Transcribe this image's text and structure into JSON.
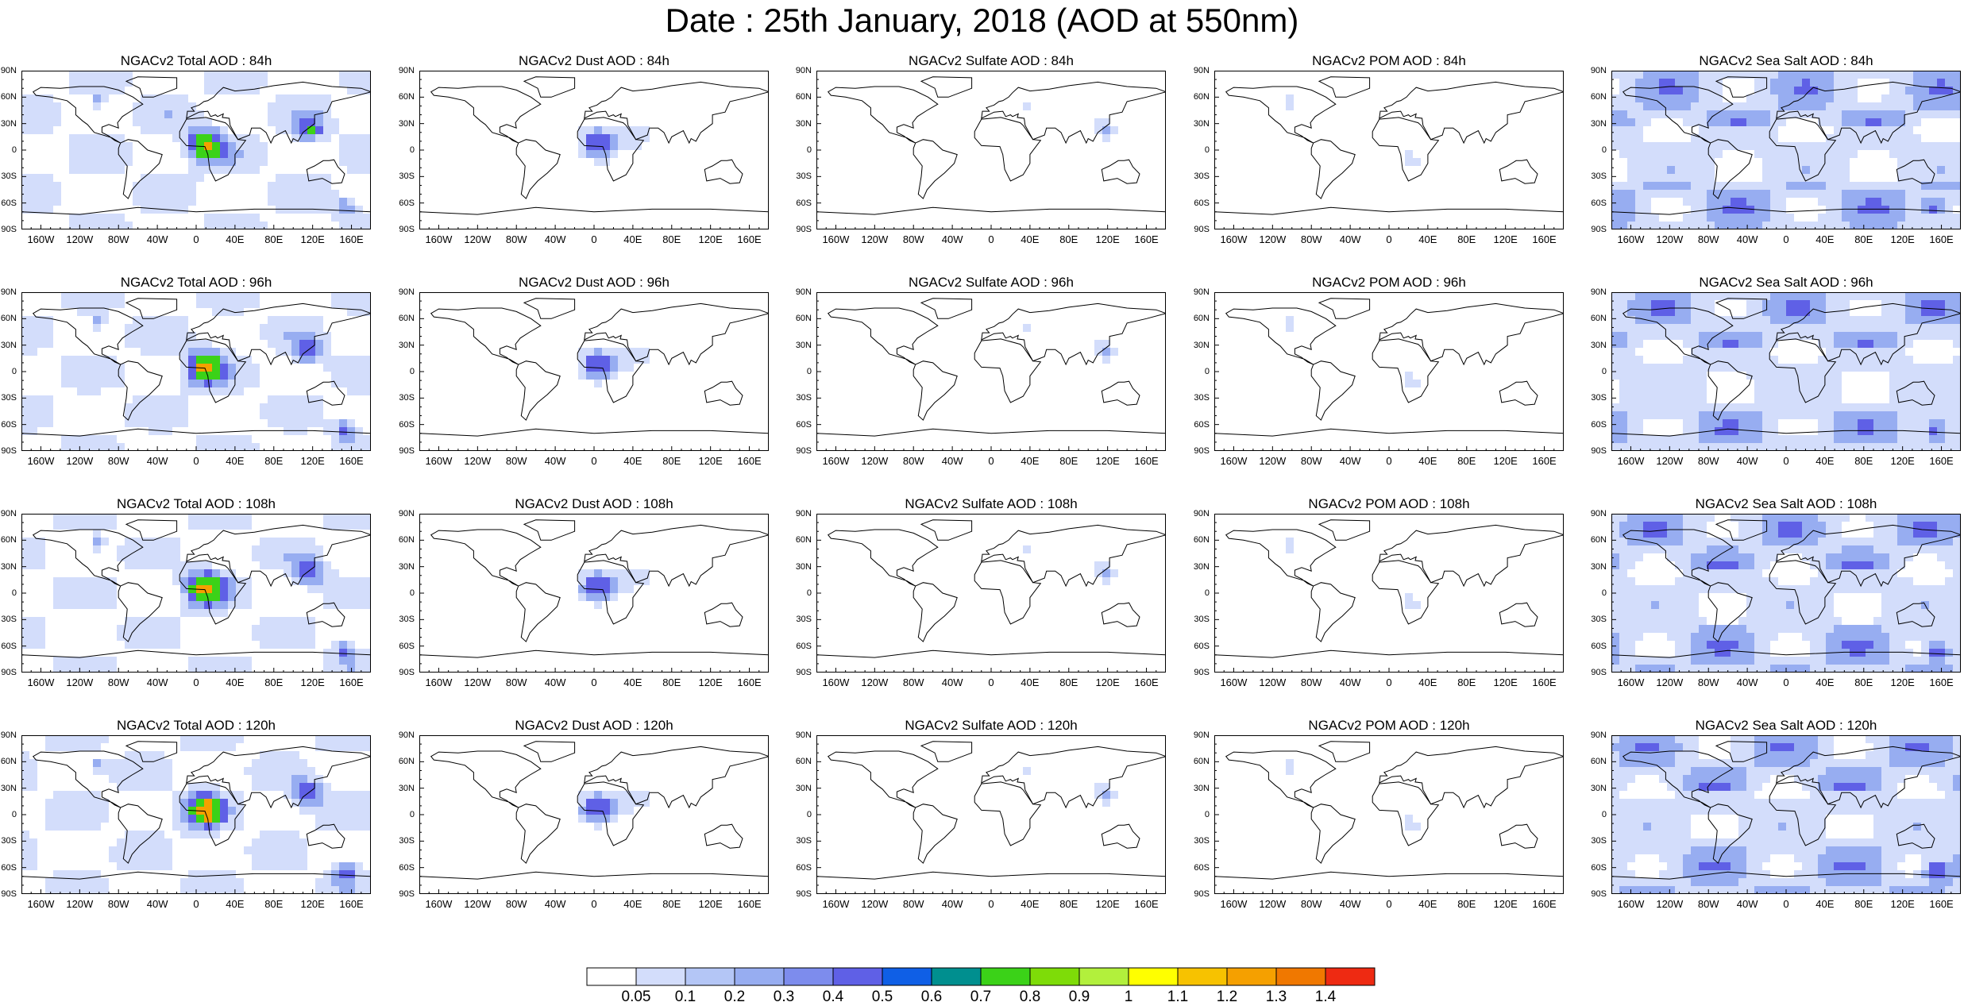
{
  "title": "Date : 25th January, 2018 (AOD at 550nm)",
  "columns": [
    {
      "product": "Total",
      "titles": [
        "NGACv2 Total AOD : 84h",
        "NGACv2 Total AOD : 96h",
        "NGACv2 Total AOD : 108h",
        "NGACv2 Total AOD : 120h"
      ]
    },
    {
      "product": "Dust",
      "titles": [
        "NGACv2 Dust AOD : 84h",
        "NGACv2 Dust AOD : 96h",
        "NGACv2 Dust AOD : 108h",
        "NGACv2 Dust AOD : 120h"
      ]
    },
    {
      "product": "Sulfate",
      "titles": [
        "NGACv2 Sulfate AOD : 84h",
        "NGACv2 Sulfate AOD : 96h",
        "NGACv2 Sulfate AOD : 108h",
        "NGACv2 Sulfate AOD : 120h"
      ]
    },
    {
      "product": "POM",
      "titles": [
        "NGACv2 POM AOD : 84h",
        "NGACv2 POM AOD : 96h",
        "NGACv2 POM AOD : 108h",
        "NGACv2 POM AOD : 120h"
      ]
    },
    {
      "product": "Sea Salt",
      "titles": [
        "NGACv2 Sea Salt AOD : 84h",
        "NGACv2 Sea Salt AOD : 96h",
        "NGACv2 Sea Salt AOD : 108h",
        "NGACv2 Sea Salt  AOD : 120h"
      ]
    }
  ],
  "lat_labels": [
    "90N",
    "60N",
    "30N",
    "0",
    "30S",
    "60S",
    "90S"
  ],
  "lon_labels": [
    "160W",
    "120W",
    "80W",
    "40W",
    "0",
    "40E",
    "80E",
    "120E",
    "160E"
  ],
  "colorbar": {
    "labels": [
      "0.05",
      "0.1",
      "0.2",
      "0.3",
      "0.4",
      "0.5",
      "0.6",
      "0.7",
      "0.8",
      "0.9",
      "1",
      "1.1",
      "1.2",
      "1.3",
      "1.4"
    ],
    "colors": [
      "#ffffff",
      "#d3ddfb",
      "#b4c6f6",
      "#97adf1",
      "#7d8ced",
      "#5f60e6",
      "#0f5fe6",
      "#008f8f",
      "#3bd218",
      "#7edc08",
      "#b2f03c",
      "#ffff00",
      "#f7c200",
      "#f5a000",
      "#f07800",
      "#ee2a12"
    ]
  },
  "field_colors": {
    "low": "#d3ddfb",
    "mid": "#97adf1",
    "high": "#5f60e6",
    "peak": "#3bd218",
    "max": "#f5a000"
  }
}
